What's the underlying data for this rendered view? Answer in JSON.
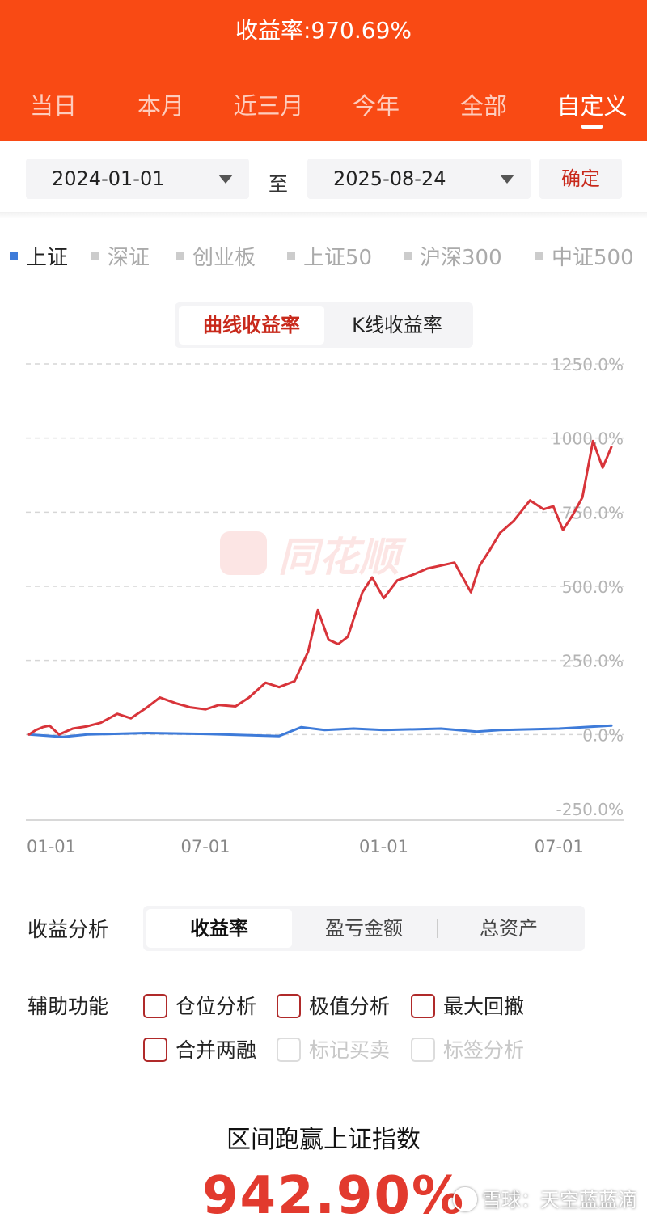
{
  "header": {
    "title": "收益率:970.69%",
    "tabs": [
      {
        "label": "当日"
      },
      {
        "label": "本月"
      },
      {
        "label": "近三月"
      },
      {
        "label": "今年"
      },
      {
        "label": "全部"
      },
      {
        "label": "自定义"
      }
    ],
    "active_tab": "自定义"
  },
  "date_range": {
    "start": "2024-01-01",
    "to_label": "至",
    "end": "2025-08-24",
    "confirm_label": "确定"
  },
  "benchmarks": [
    {
      "label": "上证",
      "active": true
    },
    {
      "label": "深证",
      "active": false
    },
    {
      "label": "创业板",
      "active": false
    },
    {
      "label": "上证50",
      "active": false
    },
    {
      "label": "沪深300",
      "active": false
    },
    {
      "label": "中证500",
      "active": false
    }
  ],
  "chart_mode": {
    "options": [
      "曲线收益率",
      "K线收益率"
    ],
    "active": "曲线收益率"
  },
  "watermark": "同花顺",
  "chart_data": {
    "type": "line",
    "x_tick_labels": [
      "01-01",
      "07-01",
      "01-01",
      "07-01"
    ],
    "y_tick_labels": [
      "1250.0%",
      "1000.0%",
      "750.0%",
      "500.0%",
      "250.0%",
      "0.0%",
      "-250.0%"
    ],
    "ylim": [
      -250,
      1250
    ],
    "x_range": [
      "2024-01-01",
      "2025-08-24"
    ],
    "grid": true,
    "series": [
      {
        "color": "#d8343a",
        "points": [
          [
            "2024-01-01",
            0
          ],
          [
            "2024-01-08",
            15
          ],
          [
            "2024-01-15",
            25
          ],
          [
            "2024-01-22",
            30
          ],
          [
            "2024-02-01",
            0
          ],
          [
            "2024-02-15",
            20
          ],
          [
            "2024-03-01",
            28
          ],
          [
            "2024-03-15",
            40
          ],
          [
            "2024-04-01",
            70
          ],
          [
            "2024-04-15",
            55
          ],
          [
            "2024-05-01",
            90
          ],
          [
            "2024-05-15",
            125
          ],
          [
            "2024-06-01",
            105
          ],
          [
            "2024-06-15",
            92
          ],
          [
            "2024-07-01",
            85
          ],
          [
            "2024-07-15",
            100
          ],
          [
            "2024-08-01",
            95
          ],
          [
            "2024-08-15",
            125
          ],
          [
            "2024-09-01",
            175
          ],
          [
            "2024-09-15",
            160
          ],
          [
            "2024-10-01",
            180
          ],
          [
            "2024-10-15",
            280
          ],
          [
            "2024-10-25",
            420
          ],
          [
            "2024-11-05",
            320
          ],
          [
            "2024-11-15",
            305
          ],
          [
            "2024-11-25",
            330
          ],
          [
            "2024-12-10",
            480
          ],
          [
            "2024-12-20",
            530
          ],
          [
            "2025-01-01",
            460
          ],
          [
            "2025-01-15",
            520
          ],
          [
            "2025-02-01",
            540
          ],
          [
            "2025-02-15",
            560
          ],
          [
            "2025-03-01",
            570
          ],
          [
            "2025-03-15",
            580
          ],
          [
            "2025-04-01",
            480
          ],
          [
            "2025-04-10",
            570
          ],
          [
            "2025-04-20",
            620
          ],
          [
            "2025-05-01",
            680
          ],
          [
            "2025-05-15",
            720
          ],
          [
            "2025-06-01",
            790
          ],
          [
            "2025-06-15",
            760
          ],
          [
            "2025-06-25",
            770
          ],
          [
            "2025-07-05",
            690
          ],
          [
            "2025-07-15",
            740
          ],
          [
            "2025-07-25",
            800
          ],
          [
            "2025-08-05",
            990
          ],
          [
            "2025-08-15",
            900
          ],
          [
            "2025-08-24",
            970
          ]
        ]
      },
      {
        "label": "上证",
        "color": "#3e7bd9",
        "points": [
          [
            "2024-01-01",
            0
          ],
          [
            "2024-02-05",
            -8
          ],
          [
            "2024-03-01",
            0
          ],
          [
            "2024-05-01",
            5
          ],
          [
            "2024-07-01",
            2
          ],
          [
            "2024-09-15",
            -5
          ],
          [
            "2024-10-08",
            25
          ],
          [
            "2024-11-01",
            15
          ],
          [
            "2024-12-01",
            20
          ],
          [
            "2025-01-01",
            15
          ],
          [
            "2025-03-01",
            20
          ],
          [
            "2025-04-07",
            10
          ],
          [
            "2025-05-01",
            15
          ],
          [
            "2025-07-01",
            20
          ],
          [
            "2025-08-24",
            30
          ]
        ]
      }
    ]
  },
  "analysis": {
    "label": "收益分析",
    "options": [
      "收益率",
      "盈亏金额",
      "总资产"
    ],
    "active": "收益率"
  },
  "aux": {
    "label": "辅助功能",
    "options": [
      {
        "label": "仓位分析",
        "enabled": true
      },
      {
        "label": "极值分析",
        "enabled": true
      },
      {
        "label": "最大回撤",
        "enabled": true
      },
      {
        "label": "合并两融",
        "enabled": true
      },
      {
        "label": "标记买卖",
        "enabled": false
      },
      {
        "label": "标签分析",
        "enabled": false
      }
    ]
  },
  "outperform": {
    "title": "区间跑赢上证指数",
    "value": "942.90%"
  },
  "bottom_watermark": "雪球：天空蓝蓝滴"
}
